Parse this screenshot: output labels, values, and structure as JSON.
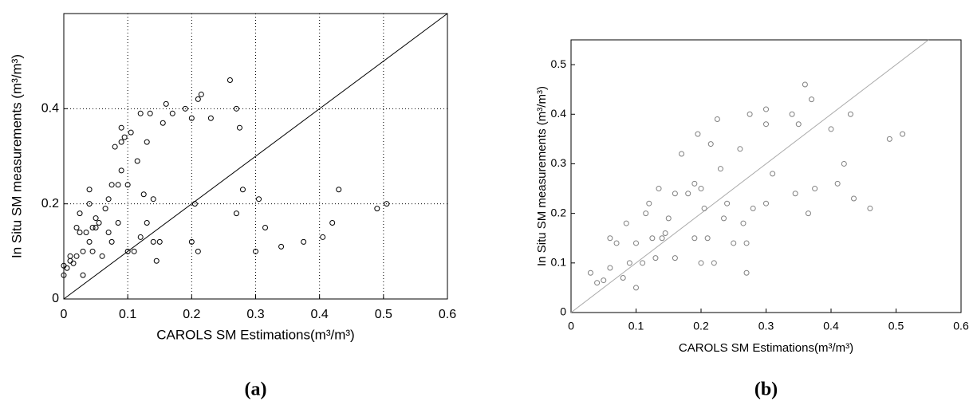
{
  "chart_data": [
    {
      "type": "scatter",
      "caption": "(a)",
      "x_label": "CAROLS SM Estimations(m³/m³)",
      "y_label": "In Situ SM measurements (m³/m³)",
      "xlim": [
        0,
        0.6
      ],
      "ylim": [
        0,
        0.6
      ],
      "xticks": [
        0,
        0.1,
        0.2,
        0.3,
        0.4,
        0.5,
        0.6
      ],
      "yticks": [
        0,
        0.2,
        0.4
      ],
      "grid": true,
      "identity_line": true,
      "color": "#000000",
      "line_color": "#000000",
      "x": [
        0,
        0,
        0.005,
        0.01,
        0.01,
        0.015,
        0.02,
        0.02,
        0.025,
        0.025,
        0.03,
        0.03,
        0.035,
        0.04,
        0.04,
        0.04,
        0.045,
        0.045,
        0.05,
        0.05,
        0.055,
        0.06,
        0.065,
        0.07,
        0.07,
        0.075,
        0.075,
        0.08,
        0.085,
        0.085,
        0.09,
        0.09,
        0.09,
        0.095,
        0.1,
        0.1,
        0.105,
        0.11,
        0.115,
        0.12,
        0.12,
        0.125,
        0.13,
        0.13,
        0.135,
        0.14,
        0.14,
        0.145,
        0.15,
        0.155,
        0.16,
        0.17,
        0.19,
        0.2,
        0.2,
        0.205,
        0.21,
        0.21,
        0.215,
        0.23,
        0.26,
        0.27,
        0.27,
        0.275,
        0.28,
        0.3,
        0.305,
        0.315,
        0.34,
        0.375,
        0.405,
        0.42,
        0.43,
        0.49,
        0.505
      ],
      "values": [
        0.05,
        0.07,
        0.065,
        0.08,
        0.09,
        0.075,
        0.09,
        0.15,
        0.14,
        0.18,
        0.05,
        0.1,
        0.14,
        0.12,
        0.2,
        0.23,
        0.1,
        0.15,
        0.15,
        0.17,
        0.16,
        0.09,
        0.19,
        0.21,
        0.14,
        0.24,
        0.12,
        0.32,
        0.16,
        0.24,
        0.27,
        0.33,
        0.36,
        0.34,
        0.24,
        0.1,
        0.35,
        0.1,
        0.29,
        0.39,
        0.13,
        0.22,
        0.33,
        0.16,
        0.39,
        0.12,
        0.21,
        0.08,
        0.12,
        0.37,
        0.41,
        0.39,
        0.4,
        0.38,
        0.12,
        0.2,
        0.42,
        0.1,
        0.43,
        0.38,
        0.46,
        0.4,
        0.18,
        0.36,
        0.23,
        0.1,
        0.21,
        0.15,
        0.11,
        0.12,
        0.13,
        0.16,
        0.23,
        0.19,
        0.2
      ]
    },
    {
      "type": "scatter",
      "caption": "(b)",
      "x_label": "CAROLS SM Estimations(m³/m³)",
      "y_label": "In Situ SM measurements (m³/m³)",
      "xlim": [
        0,
        0.6
      ],
      "ylim": [
        0,
        0.55
      ],
      "xticks": [
        0,
        0.1,
        0.2,
        0.3,
        0.4,
        0.5,
        0.6
      ],
      "yticks": [
        0,
        0.1,
        0.2,
        0.3,
        0.4,
        0.5
      ],
      "grid": false,
      "identity_line": true,
      "color": "#808080",
      "line_color": "#aaaaaa",
      "x": [
        0.03,
        0.04,
        0.05,
        0.06,
        0.06,
        0.07,
        0.08,
        0.085,
        0.09,
        0.1,
        0.1,
        0.11,
        0.115,
        0.12,
        0.125,
        0.13,
        0.135,
        0.14,
        0.145,
        0.15,
        0.16,
        0.16,
        0.17,
        0.18,
        0.19,
        0.19,
        0.195,
        0.2,
        0.2,
        0.205,
        0.21,
        0.215,
        0.22,
        0.225,
        0.23,
        0.235,
        0.24,
        0.25,
        0.26,
        0.265,
        0.27,
        0.27,
        0.275,
        0.28,
        0.3,
        0.3,
        0.3,
        0.31,
        0.34,
        0.345,
        0.35,
        0.36,
        0.365,
        0.37,
        0.375,
        0.4,
        0.41,
        0.42,
        0.43,
        0.435,
        0.46,
        0.49,
        0.51
      ],
      "values": [
        0.08,
        0.06,
        0.065,
        0.09,
        0.15,
        0.14,
        0.07,
        0.18,
        0.1,
        0.05,
        0.14,
        0.1,
        0.2,
        0.22,
        0.15,
        0.11,
        0.25,
        0.15,
        0.16,
        0.19,
        0.24,
        0.11,
        0.32,
        0.24,
        0.15,
        0.26,
        0.36,
        0.1,
        0.25,
        0.21,
        0.15,
        0.34,
        0.1,
        0.39,
        0.29,
        0.19,
        0.22,
        0.14,
        0.33,
        0.18,
        0.08,
        0.14,
        0.4,
        0.21,
        0.38,
        0.22,
        0.41,
        0.28,
        0.4,
        0.24,
        0.38,
        0.46,
        0.2,
        0.43,
        0.25,
        0.37,
        0.26,
        0.3,
        0.4,
        0.23,
        0.21,
        0.35,
        0.36
      ]
    }
  ]
}
